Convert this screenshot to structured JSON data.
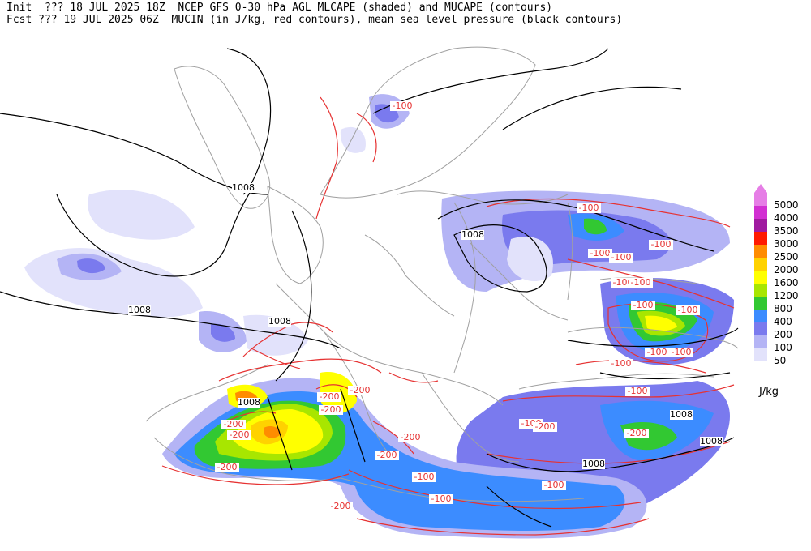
{
  "header": {
    "line1": "Init  ??? 18 JUL 2025 18Z  NCEP GFS 0-30 hPa AGL MLCAPE (shaded) and MUCAPE (contours)",
    "line2": "Fcst ??? 19 JUL 2025 06Z  MUCIN (in J/kg, red contours), mean sea level pressure (black contours)"
  },
  "legend": {
    "units": "J/kg",
    "levels": [
      {
        "label": "5000",
        "color": "#e67ee6"
      },
      {
        "label": "4000",
        "color": "#d22fd2"
      },
      {
        "label": "3500",
        "color": "#a01aa0"
      },
      {
        "label": "3000",
        "color": "#ff1a00"
      },
      {
        "label": "2500",
        "color": "#ff8c00"
      },
      {
        "label": "2000",
        "color": "#ffd200"
      },
      {
        "label": "1600",
        "color": "#ffff00"
      },
      {
        "label": "1200",
        "color": "#a8e600"
      },
      {
        "label": "800",
        "color": "#32c832"
      },
      {
        "label": "400",
        "color": "#3c8cff"
      },
      {
        "label": "200",
        "color": "#7a7aee"
      },
      {
        "label": "100",
        "color": "#b4b4f5"
      },
      {
        "label": "50",
        "color": "#e2e2fb"
      }
    ]
  },
  "pressure_labels": [
    "1008",
    "1008",
    "1008",
    "1008",
    "1008",
    "1008",
    "1008",
    "1008"
  ],
  "cin_labels": [
    "-100",
    "-100",
    "-100",
    "-100",
    "-100",
    "-100",
    "-100",
    "-100",
    "-100",
    "-100",
    "-100",
    "-100",
    "-100",
    "-100",
    "-100",
    "-100",
    "-100",
    "-200",
    "-200",
    "-200",
    "-200",
    "-200",
    "-200",
    "-200",
    "-200",
    "-200",
    "-200",
    "-200"
  ]
}
